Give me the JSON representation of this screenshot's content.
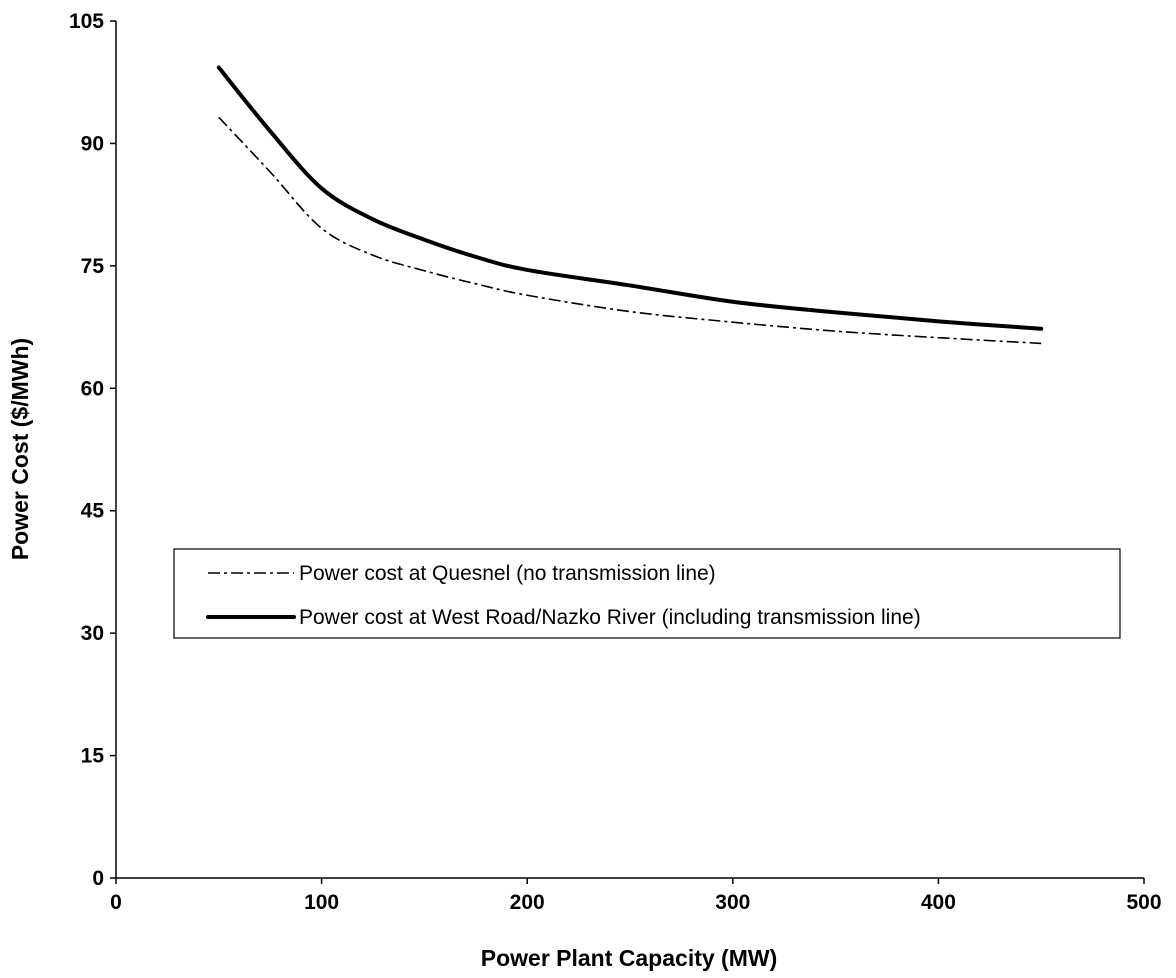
{
  "chart_data": {
    "type": "line",
    "title": "",
    "xlabel": "Power Plant Capacity (MW)",
    "ylabel": "Power Cost ($/MWh)",
    "xlim": [
      0,
      500
    ],
    "ylim": [
      0,
      105
    ],
    "xticks": [
      0,
      100,
      200,
      300,
      400,
      500
    ],
    "yticks": [
      0,
      15,
      30,
      45,
      60,
      75,
      90,
      105
    ],
    "grid": false,
    "legend_position": "center",
    "series": [
      {
        "name": "Power cost at Quesnel (no transmission line)",
        "style": "dash-dot",
        "color": "#000000",
        "x": [
          50,
          75,
          100,
          125,
          150,
          175,
          200,
          250,
          300,
          350,
          400,
          450
        ],
        "y": [
          93.2,
          86.5,
          79.6,
          76.3,
          74.4,
          72.8,
          71.4,
          69.4,
          68.1,
          67.0,
          66.2,
          65.5
        ]
      },
      {
        "name": "Power cost at West Road/Nazko River (including transmission line)",
        "style": "solid-thick",
        "color": "#000000",
        "x": [
          50,
          75,
          100,
          125,
          150,
          175,
          200,
          250,
          300,
          350,
          400,
          450
        ],
        "y": [
          99.3,
          91.5,
          84.5,
          80.7,
          78.2,
          76.1,
          74.5,
          72.6,
          70.6,
          69.3,
          68.2,
          67.3
        ]
      }
    ]
  }
}
